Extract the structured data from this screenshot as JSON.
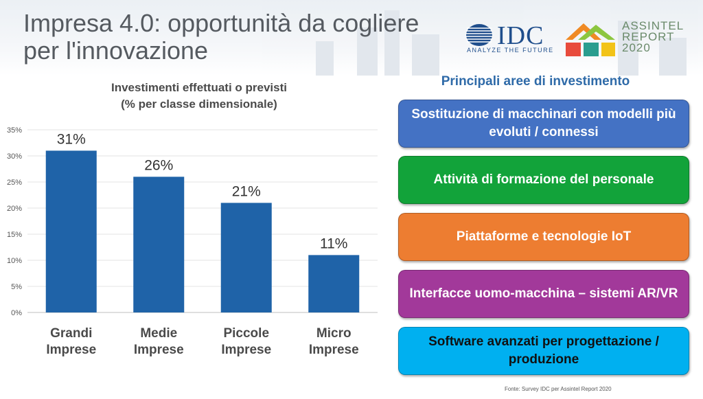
{
  "slide": {
    "title": "Impresa 4.0: opportunità da cogliere per l'innovazione",
    "footnote": "Fonte: Survey IDC per Assintel Report 2020"
  },
  "logos": {
    "idc_name": "IDC",
    "idc_tagline": "ANALYZE THE FUTURE",
    "assintel_line1": "ASSINTEL",
    "assintel_line2": "REPORT",
    "assintel_line3": "2020"
  },
  "chart_data": {
    "type": "bar",
    "title_line1": "Investimenti effettuati o previsti",
    "title_line2": "(% per classe dimensionale)",
    "categories": [
      [
        "Grandi",
        "Imprese"
      ],
      [
        "Medie",
        "Imprese"
      ],
      [
        "Piccole",
        "Imprese"
      ],
      [
        "Micro",
        "Imprese"
      ]
    ],
    "values": [
      31,
      26,
      21,
      11
    ],
    "data_labels": [
      "31%",
      "26%",
      "21%",
      "11%"
    ],
    "ylim": [
      0,
      35
    ],
    "yticks": [
      "0%",
      "5%",
      "10%",
      "15%",
      "20%",
      "25%",
      "30%",
      "35%"
    ],
    "grid": true,
    "bar_color": "#1f63a8"
  },
  "areas": {
    "title": "Principali aree di investimento",
    "items": [
      {
        "label": "Sostituzione di macchinari con modelli più evoluti / connessi",
        "color": "#4472c4",
        "text_dark": false
      },
      {
        "label": "Attività di formazione del personale",
        "color": "#12a33a",
        "text_dark": false
      },
      {
        "label": "Piattaforme e tecnologie IoT",
        "color": "#ed7d31",
        "text_dark": false
      },
      {
        "label": "Interfacce uomo-macchina – sistemi AR/VR",
        "color": "#a2399a",
        "text_dark": false
      },
      {
        "label": "Software avanzati per progettazione / produzione",
        "color": "#00b0f0",
        "text_dark": true
      }
    ]
  }
}
